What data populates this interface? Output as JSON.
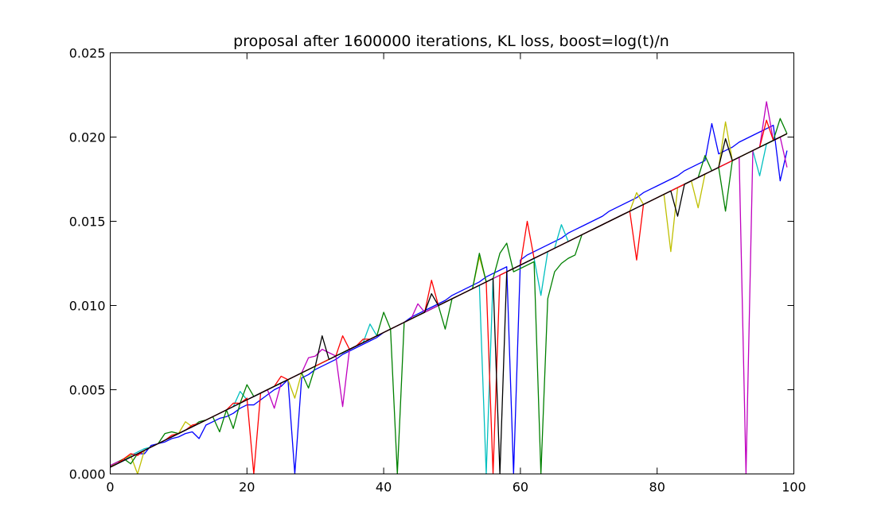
{
  "chart_data": {
    "type": "line",
    "title": "proposal after 1600000 iterations, KL loss, boost=log(t)/n",
    "xlabel": "",
    "ylabel": "",
    "xlim": [
      0,
      100
    ],
    "ylim": [
      0,
      0.025
    ],
    "grid": false,
    "legend": "none",
    "x_ticks": [
      "0",
      "20",
      "40",
      "60",
      "80",
      "100"
    ],
    "y_ticks": [
      "0.000",
      "0.005",
      "0.010",
      "0.015",
      "0.020",
      "0.025"
    ],
    "series_colors": [
      "#0000ff",
      "#00bfbf",
      "#bfbf00",
      "#008000",
      "#bf00bf",
      "#ff0000",
      "#000000"
    ],
    "series": [
      {
        "color": "#0000ff",
        "values": [
          0.0005,
          0.0006,
          0.0008,
          0.001,
          0.0012,
          0.0012,
          0.0017,
          0.0018,
          0.0019,
          0.0021,
          0.0022,
          0.0024,
          0.0025,
          0.0021,
          0.0029,
          0.0031,
          0.0033,
          0.0034,
          0.0036,
          0.0039,
          0.0041,
          0.0041,
          0.0044,
          0.0047,
          0.005,
          0.0052,
          0.0056,
          0.0,
          0.0057,
          0.0059,
          0.0062,
          0.0064,
          0.0066,
          0.0068,
          0.0071,
          0.0073,
          0.0075,
          0.0077,
          0.0079,
          0.0081,
          0.0084,
          0.0086,
          0.0088,
          0.009,
          0.0093,
          0.0095,
          0.0097,
          0.0099,
          0.0101,
          0.0103,
          0.0106,
          0.0108,
          0.011,
          0.0112,
          0.0114,
          0.0117,
          0.0119,
          0.0121,
          0.0123,
          0.0,
          0.0127,
          0.013,
          0.0132,
          0.0134,
          0.0136,
          0.0138,
          0.014,
          0.0143,
          0.0145,
          0.0147,
          0.0149,
          0.0151,
          0.0153,
          0.0156,
          0.0158,
          0.016,
          0.0162,
          0.0164,
          0.0167,
          0.0169,
          0.0171,
          0.0173,
          0.0175,
          0.0177,
          0.018,
          0.0182,
          0.0184,
          0.0186,
          0.0208,
          0.019,
          0.0192,
          0.0194,
          0.0197,
          0.0199,
          0.0201,
          0.0203,
          0.0205,
          0.0207,
          0.0174,
          0.0192
        ]
      },
      {
        "color": "#00bfbf",
        "values": [
          0.0004,
          0.0006,
          0.0008,
          0.0011,
          0.0013,
          0.0015,
          0.0016,
          0.0018,
          0.002,
          0.0022,
          0.0024,
          0.0026,
          0.0028,
          0.003,
          0.0032,
          0.0034,
          0.0036,
          0.0038,
          0.004,
          0.0049,
          0.0044,
          0.0046,
          0.0048,
          0.005,
          0.0052,
          0.0054,
          0.0056,
          0.0058,
          0.006,
          0.0062,
          0.0064,
          0.0066,
          0.0068,
          0.007,
          0.0072,
          0.0074,
          0.0076,
          0.0078,
          0.0089,
          0.0082,
          0.0084,
          0.0086,
          0.0088,
          0.009,
          0.0092,
          0.0094,
          0.0096,
          0.0098,
          0.01,
          0.0102,
          0.0104,
          0.0106,
          0.0108,
          0.011,
          0.0112,
          0.0,
          0.0116,
          0.0118,
          0.012,
          0.0122,
          0.0124,
          0.0126,
          0.0128,
          0.0106,
          0.0132,
          0.0134,
          0.0148,
          0.0138,
          0.014,
          0.0142,
          0.0144,
          0.0146,
          0.0148,
          0.015,
          0.0152,
          0.0154,
          0.0156,
          0.0158,
          0.016,
          0.0162,
          0.0164,
          0.0166,
          0.0168,
          0.017,
          0.0172,
          0.0174,
          0.0176,
          0.0178,
          0.018,
          0.0182,
          0.0184,
          0.0186,
          0.0188,
          0.019,
          0.0192,
          0.0177,
          0.0196,
          0.0198,
          0.02,
          0.0202
        ]
      },
      {
        "color": "#bfbf00",
        "values": [
          0.0004,
          0.0007,
          0.0009,
          0.0011,
          0.0,
          0.0014,
          0.0016,
          0.0018,
          0.002,
          0.0022,
          0.0024,
          0.0031,
          0.0028,
          0.003,
          0.0032,
          0.0034,
          0.0036,
          0.0038,
          0.004,
          0.0042,
          0.0044,
          0.0046,
          0.0048,
          0.005,
          0.0052,
          0.0054,
          0.0056,
          0.0045,
          0.006,
          0.0062,
          0.0064,
          0.0066,
          0.0068,
          0.007,
          0.0072,
          0.0074,
          0.0076,
          0.0078,
          0.008,
          0.0082,
          0.0084,
          0.0086,
          0.0088,
          0.009,
          0.0092,
          0.0094,
          0.0096,
          0.0098,
          0.01,
          0.0102,
          0.0104,
          0.0106,
          0.0108,
          0.011,
          0.0129,
          0.0114,
          0.0116,
          0.0118,
          0.012,
          0.0122,
          0.0124,
          0.0126,
          0.0128,
          0.013,
          0.0132,
          0.0134,
          0.0136,
          0.0138,
          0.014,
          0.0142,
          0.0144,
          0.0146,
          0.0148,
          0.015,
          0.0152,
          0.0154,
          0.0156,
          0.0167,
          0.016,
          0.0162,
          0.0164,
          0.0166,
          0.0132,
          0.017,
          0.0172,
          0.0174,
          0.0158,
          0.0178,
          0.018,
          0.0182,
          0.0209,
          0.0186,
          0.0188,
          0.019,
          0.0192,
          0.0194,
          0.0196,
          0.0198,
          0.02,
          0.0202
        ]
      },
      {
        "color": "#008000",
        "values": [
          0.0005,
          0.0007,
          0.0009,
          0.0006,
          0.0012,
          0.0014,
          0.0016,
          0.0018,
          0.0024,
          0.0025,
          0.0024,
          0.0026,
          0.0028,
          0.0031,
          0.0032,
          0.0034,
          0.0025,
          0.0038,
          0.0027,
          0.0042,
          0.0053,
          0.0046,
          0.0048,
          0.005,
          0.0052,
          0.0054,
          0.0056,
          0.0058,
          0.006,
          0.0051,
          0.0064,
          0.0066,
          0.0068,
          0.007,
          0.0072,
          0.0074,
          0.0076,
          0.0078,
          0.008,
          0.0082,
          0.0096,
          0.0086,
          0.0,
          0.009,
          0.0092,
          0.0094,
          0.0096,
          0.0098,
          0.01,
          0.0086,
          0.0104,
          0.0106,
          0.0108,
          0.011,
          0.0131,
          0.0114,
          0.0116,
          0.0131,
          0.0137,
          0.012,
          0.0122,
          0.0124,
          0.0126,
          0.0,
          0.0104,
          0.012,
          0.0125,
          0.0128,
          0.013,
          0.0142,
          0.0144,
          0.0146,
          0.0148,
          0.015,
          0.0152,
          0.0154,
          0.0156,
          0.0158,
          0.016,
          0.0162,
          0.0164,
          0.0166,
          0.0168,
          0.017,
          0.0172,
          0.0174,
          0.0176,
          0.0189,
          0.018,
          0.0182,
          0.0156,
          0.0186,
          0.0188,
          0.019,
          0.0192,
          0.0194,
          0.0196,
          0.0198,
          0.0211,
          0.0202
        ]
      },
      {
        "color": "#bf00bf",
        "values": [
          0.0005,
          0.0007,
          0.0008,
          0.001,
          0.0012,
          0.0014,
          0.0016,
          0.0018,
          0.002,
          0.0022,
          0.0024,
          0.0026,
          0.0028,
          0.003,
          0.0032,
          0.0034,
          0.0036,
          0.0038,
          0.004,
          0.0042,
          0.0044,
          0.0046,
          0.0048,
          0.005,
          0.0039,
          0.0054,
          0.0056,
          0.0058,
          0.006,
          0.0069,
          0.007,
          0.0074,
          0.0072,
          0.007,
          0.004,
          0.0074,
          0.0076,
          0.0078,
          0.008,
          0.0082,
          0.0084,
          0.0086,
          0.0088,
          0.009,
          0.0092,
          0.0101,
          0.0096,
          0.0098,
          0.01,
          0.0102,
          0.0104,
          0.0106,
          0.0108,
          0.011,
          0.0112,
          0.0114,
          0.0116,
          0.0118,
          0.012,
          0.0122,
          0.0124,
          0.0126,
          0.0128,
          0.013,
          0.0132,
          0.0134,
          0.0136,
          0.0138,
          0.014,
          0.0142,
          0.0144,
          0.0146,
          0.0148,
          0.015,
          0.0152,
          0.0154,
          0.0156,
          0.0158,
          0.016,
          0.0162,
          0.0164,
          0.0166,
          0.0168,
          0.017,
          0.0172,
          0.0174,
          0.0176,
          0.0178,
          0.018,
          0.0182,
          0.0184,
          0.0186,
          0.0188,
          0.0,
          0.0192,
          0.0194,
          0.0221,
          0.0198,
          0.02,
          0.0182
        ]
      },
      {
        "color": "#ff0000",
        "values": [
          0.0004,
          0.0006,
          0.0009,
          0.0012,
          0.0011,
          0.0014,
          0.0016,
          0.0018,
          0.002,
          0.0023,
          0.0024,
          0.0026,
          0.0029,
          0.003,
          0.0032,
          0.0034,
          0.0036,
          0.0038,
          0.0042,
          0.0042,
          0.0045,
          0.0,
          0.0048,
          0.005,
          0.0052,
          0.0058,
          0.0056,
          0.0058,
          0.006,
          0.0062,
          0.0064,
          0.0066,
          0.0068,
          0.007,
          0.0082,
          0.0074,
          0.0076,
          0.008,
          0.008,
          0.0082,
          0.0084,
          0.0086,
          0.0088,
          0.009,
          0.0092,
          0.0094,
          0.0096,
          0.0115,
          0.01,
          0.0102,
          0.0104,
          0.0106,
          0.0108,
          0.011,
          0.0112,
          0.0114,
          0.0,
          0.0118,
          0.012,
          0.0122,
          0.0124,
          0.015,
          0.0128,
          0.013,
          0.0132,
          0.0134,
          0.0136,
          0.0138,
          0.014,
          0.0142,
          0.0144,
          0.0146,
          0.0148,
          0.015,
          0.0152,
          0.0154,
          0.0156,
          0.0127,
          0.016,
          0.0162,
          0.0164,
          0.0166,
          0.0168,
          0.017,
          0.0172,
          0.0174,
          0.0176,
          0.0178,
          0.018,
          0.0182,
          0.0184,
          0.0186,
          0.0188,
          0.019,
          0.0192,
          0.0194,
          0.021,
          0.0198,
          0.02,
          0.0202
        ]
      },
      {
        "color": "#000000",
        "values": [
          0.0004,
          0.0006,
          0.0008,
          0.001,
          0.0012,
          0.0014,
          0.0016,
          0.0018,
          0.002,
          0.0022,
          0.0024,
          0.0026,
          0.0028,
          0.003,
          0.0032,
          0.0034,
          0.0036,
          0.0038,
          0.004,
          0.0042,
          0.0044,
          0.0046,
          0.0048,
          0.005,
          0.0052,
          0.0054,
          0.0056,
          0.0058,
          0.006,
          0.0062,
          0.0064,
          0.0082,
          0.0068,
          0.007,
          0.0072,
          0.0074,
          0.0076,
          0.0078,
          0.008,
          0.0082,
          0.0084,
          0.0086,
          0.0088,
          0.009,
          0.0092,
          0.0094,
          0.0096,
          0.0107,
          0.01,
          0.0102,
          0.0104,
          0.0106,
          0.0108,
          0.011,
          0.0112,
          0.0114,
          0.0116,
          0.0,
          0.012,
          0.0122,
          0.0124,
          0.0126,
          0.0128,
          0.013,
          0.0132,
          0.0134,
          0.0136,
          0.0138,
          0.014,
          0.0142,
          0.0144,
          0.0146,
          0.0148,
          0.015,
          0.0152,
          0.0154,
          0.0156,
          0.0158,
          0.016,
          0.0162,
          0.0164,
          0.0166,
          0.0168,
          0.0153,
          0.0172,
          0.0174,
          0.0176,
          0.0178,
          0.018,
          0.0182,
          0.0199,
          0.0186,
          0.0188,
          0.019,
          0.0192,
          0.0194,
          0.0196,
          0.0198,
          0.02,
          0.0202
        ]
      }
    ]
  }
}
